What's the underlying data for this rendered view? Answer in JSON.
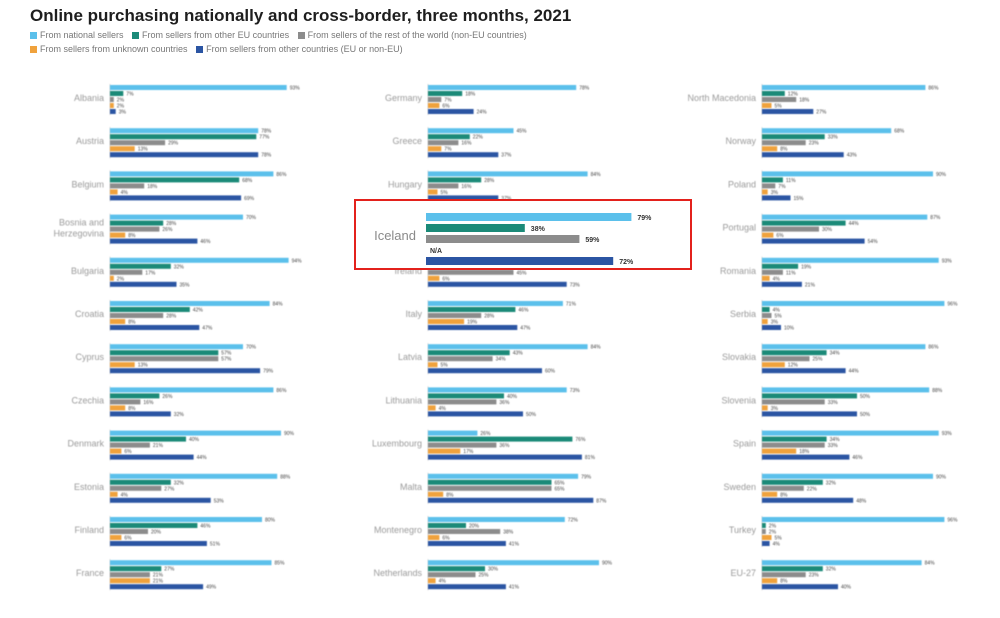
{
  "title": "Online purchasing nationally and cross-border, three months, 2021",
  "legend": [
    {
      "label": "From national sellers",
      "color": "#5bc0eb"
    },
    {
      "label": "From sellers from other EU countries",
      "color": "#1b8a78"
    },
    {
      "label": "From sellers of the rest of the world (non-EU countries)",
      "color": "#8c8c8c"
    },
    {
      "label": "From sellers from unknown countries",
      "color": "#f0a23c"
    },
    {
      "label": "From sellers from other countries (EU or non-EU)",
      "color": "#2b55a3"
    }
  ],
  "highlight": {
    "country": "Iceland",
    "values": [
      79,
      38,
      59,
      null,
      72
    ],
    "labels": [
      "79%",
      "38%",
      "59%",
      "N/A",
      "72%"
    ]
  },
  "chart_data": {
    "type": "bar",
    "orientation": "horizontal",
    "unit": "%",
    "series_names": [
      "From national sellers",
      "From sellers from other EU countries",
      "From sellers of the rest of the world (non-EU countries)",
      "From sellers from unknown countries",
      "From sellers from other countries (EU or non-EU)"
    ],
    "columns": [
      [
        {
          "country": "Albania",
          "values": [
            93,
            7,
            2,
            2,
            3
          ]
        },
        {
          "country": "Austria",
          "values": [
            78,
            77,
            29,
            13,
            78
          ]
        },
        {
          "country": "Belgium",
          "values": [
            86,
            68,
            18,
            4,
            69
          ]
        },
        {
          "country": "Bosnia and Herzegovina",
          "values": [
            70,
            28,
            26,
            8,
            46
          ]
        },
        {
          "country": "Bulgaria",
          "values": [
            94,
            32,
            17,
            2,
            35
          ]
        },
        {
          "country": "Croatia",
          "values": [
            84,
            42,
            28,
            8,
            47
          ]
        },
        {
          "country": "Cyprus",
          "values": [
            70,
            57,
            57,
            13,
            79
          ]
        },
        {
          "country": "Czechia",
          "values": [
            86,
            26,
            16,
            8,
            32
          ]
        },
        {
          "country": "Denmark",
          "values": [
            90,
            40,
            21,
            6,
            44
          ]
        },
        {
          "country": "Estonia",
          "values": [
            88,
            32,
            27,
            4,
            53
          ]
        },
        {
          "country": "Finland",
          "values": [
            80,
            46,
            20,
            6,
            51
          ]
        },
        {
          "country": "France",
          "values": [
            85,
            27,
            21,
            21,
            49
          ]
        }
      ],
      [
        {
          "country": "Germany",
          "values": [
            78,
            18,
            7,
            6,
            24
          ]
        },
        {
          "country": "Greece",
          "values": [
            45,
            22,
            16,
            7,
            37
          ]
        },
        {
          "country": "Hungary",
          "values": [
            84,
            28,
            16,
            5,
            37
          ]
        },
        {
          "country": "Iceland",
          "values": [
            79,
            38,
            59,
            null,
            72
          ]
        },
        {
          "country": "Ireland",
          "values": [
            88,
            55,
            45,
            6,
            73
          ]
        },
        {
          "country": "Italy",
          "values": [
            71,
            46,
            28,
            19,
            47
          ]
        },
        {
          "country": "Latvia",
          "values": [
            84,
            43,
            34,
            5,
            60
          ]
        },
        {
          "country": "Lithuania",
          "values": [
            73,
            40,
            36,
            4,
            50
          ]
        },
        {
          "country": "Luxembourg",
          "values": [
            26,
            76,
            36,
            17,
            81
          ]
        },
        {
          "country": "Malta",
          "values": [
            79,
            65,
            65,
            8,
            87
          ]
        },
        {
          "country": "Montenegro",
          "values": [
            72,
            20,
            38,
            6,
            41
          ]
        },
        {
          "country": "Netherlands",
          "values": [
            90,
            30,
            25,
            4,
            41
          ]
        }
      ],
      [
        {
          "country": "North Macedonia",
          "values": [
            86,
            12,
            18,
            5,
            27
          ]
        },
        {
          "country": "Norway",
          "values": [
            68,
            33,
            23,
            8,
            43
          ]
        },
        {
          "country": "Poland",
          "values": [
            90,
            11,
            7,
            3,
            15
          ]
        },
        {
          "country": "Portugal",
          "values": [
            87,
            44,
            30,
            6,
            54
          ]
        },
        {
          "country": "Romania",
          "values": [
            93,
            19,
            11,
            4,
            21
          ]
        },
        {
          "country": "Serbia",
          "values": [
            96,
            4,
            5,
            3,
            10
          ]
        },
        {
          "country": "Slovakia",
          "values": [
            86,
            34,
            25,
            12,
            44
          ]
        },
        {
          "country": "Slovenia",
          "values": [
            88,
            50,
            33,
            3,
            50
          ]
        },
        {
          "country": "Spain",
          "values": [
            93,
            34,
            33,
            18,
            46
          ]
        },
        {
          "country": "Sweden",
          "values": [
            90,
            32,
            22,
            8,
            48
          ]
        },
        {
          "country": "Turkey",
          "values": [
            96,
            2,
            2,
            5,
            4
          ]
        },
        {
          "country": "EU-27",
          "values": [
            84,
            32,
            23,
            8,
            40
          ]
        }
      ]
    ]
  }
}
